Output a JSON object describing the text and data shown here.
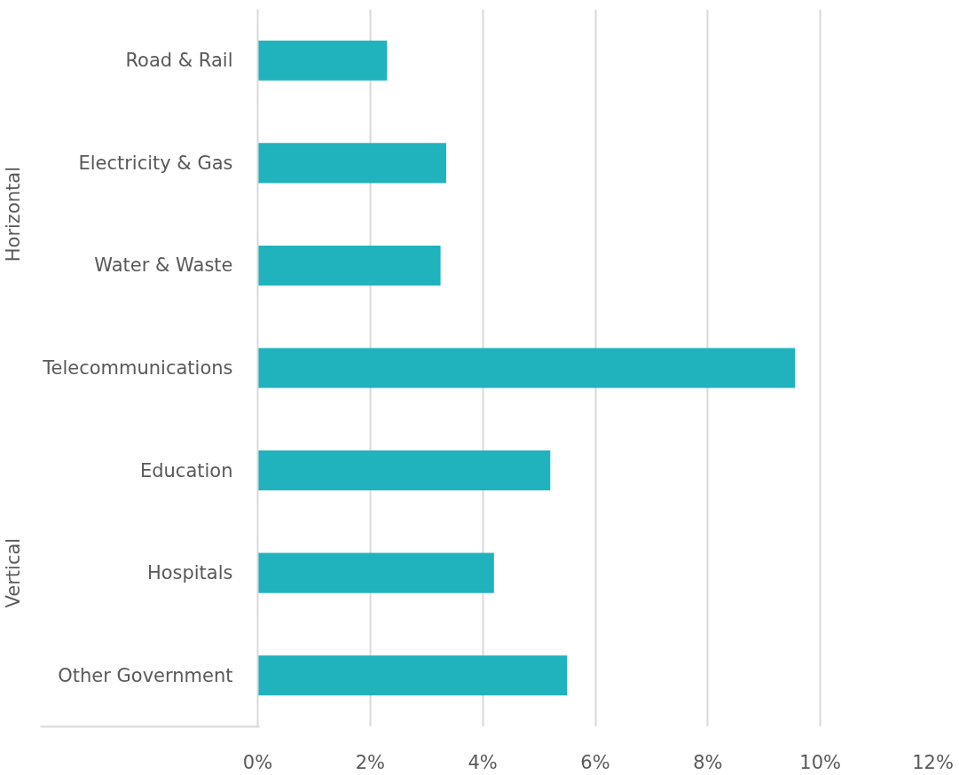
{
  "chart_data": {
    "type": "bar",
    "orientation": "horizontal",
    "categories": [
      "Road & Rail",
      "Electricity & Gas",
      "Water & Waste",
      "Telecommunications",
      "Education",
      "Hospitals",
      "Other Government"
    ],
    "values": [
      2.3,
      3.35,
      3.25,
      9.55,
      5.2,
      4.2,
      5.5
    ],
    "color": "#20b2bd",
    "xlim": [
      0,
      12
    ],
    "xticks": [
      {
        "value": 0,
        "label": "0%"
      },
      {
        "value": 2,
        "label": "2%"
      },
      {
        "value": 4,
        "label": "4%"
      },
      {
        "value": 6,
        "label": "6%"
      },
      {
        "value": 8,
        "label": "8%"
      },
      {
        "value": 10,
        "label": "10%"
      },
      {
        "value": 12,
        "label": "12%"
      }
    ],
    "grid": "x",
    "annotations": [
      "Horizontal",
      "Vertical"
    ]
  }
}
